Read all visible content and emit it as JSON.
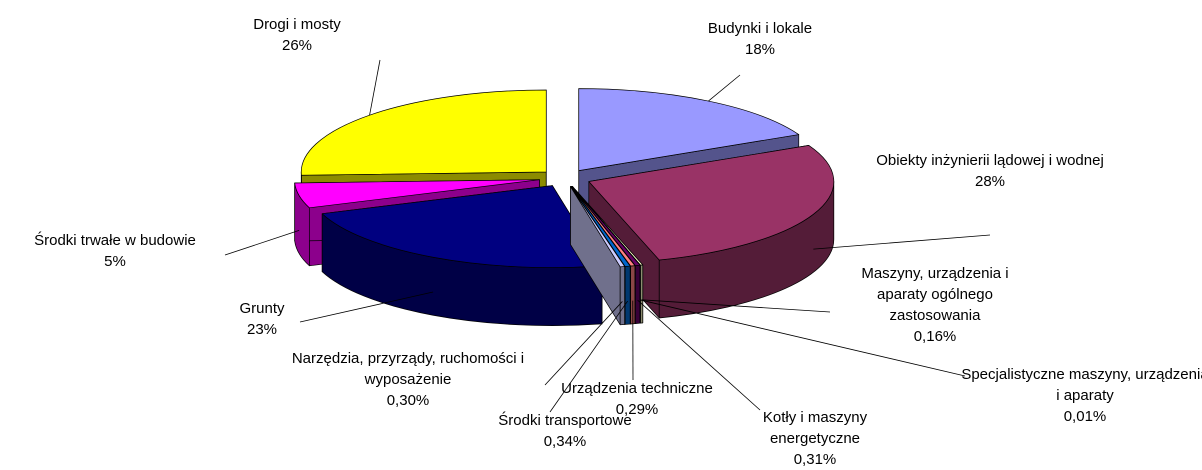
{
  "chart_data": {
    "type": "pie",
    "categories": [
      "Budynki i lokale",
      "Obiekty inżynierii lądowej i wodnej",
      "Maszyny, urządzenia i aparaty ogólnego zastosowania",
      "Specjalistyczne maszyny, urządzenia i aparaty",
      "Kotły i maszyny energetyczne",
      "Urządzenia techniczne",
      "Środki transportowe",
      "Narzędzia, przyrządy, ruchomości i wyposażenie",
      "Grunty",
      "Środki trwałe w budowie",
      "Drogi i mosty"
    ],
    "values": [
      18,
      28,
      0.16,
      0.01,
      0.31,
      0.29,
      0.34,
      0.3,
      23,
      5,
      26
    ],
    "value_labels": [
      "18%",
      "28%",
      "0,16%",
      "0,01%",
      "0,31%",
      "0,29%",
      "0,34%",
      "0,30%",
      "23%",
      "5%",
      "26%"
    ],
    "colors": [
      "#9999ff",
      "#993366",
      "#ffffcc",
      "#ccffff",
      "#660066",
      "#ff8080",
      "#0066cc",
      "#ccccff",
      "#000080",
      "#ff00ff",
      "#ffff00"
    ]
  }
}
